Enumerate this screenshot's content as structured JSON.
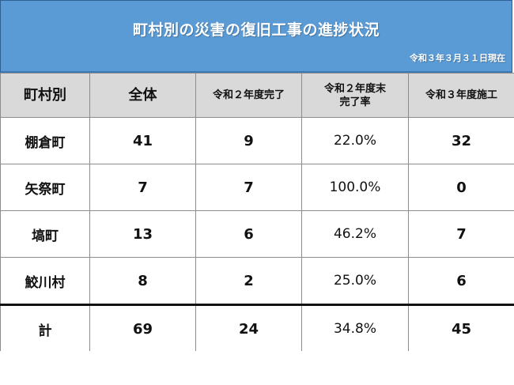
{
  "banner": {
    "title": "町村別の災害の復旧工事の進捗状況",
    "date": "令和３年３月３１日現在",
    "color": "#5b9bd5"
  },
  "table": {
    "headers": [
      "町村別",
      "全体",
      "令和２年度完了",
      "令和２年度末\n完了率",
      "令和３年度施工"
    ],
    "header_lines": {
      "col3_line1": "令和２年度末",
      "col3_line2": "完了率"
    },
    "rows": [
      {
        "name": "棚倉町",
        "total": "41",
        "completed_r2": "9",
        "rate_r2": "22.0%",
        "construction_r3": "32"
      },
      {
        "name": "矢祭町",
        "total": "7",
        "completed_r2": "7",
        "rate_r2": "100.0%",
        "construction_r3": "0"
      },
      {
        "name": "塙町",
        "total": "13",
        "completed_r2": "6",
        "rate_r2": "46.2%",
        "construction_r3": "7"
      },
      {
        "name": "鮫川村",
        "total": "8",
        "completed_r2": "2",
        "rate_r2": "25.0%",
        "construction_r3": "6"
      }
    ],
    "total_row": {
      "name": "計",
      "total": "69",
      "completed_r2": "24",
      "rate_r2": "34.8%",
      "construction_r3": "45"
    },
    "header_bg": "#d9d9d9",
    "border_color": "#8c8c8c"
  }
}
